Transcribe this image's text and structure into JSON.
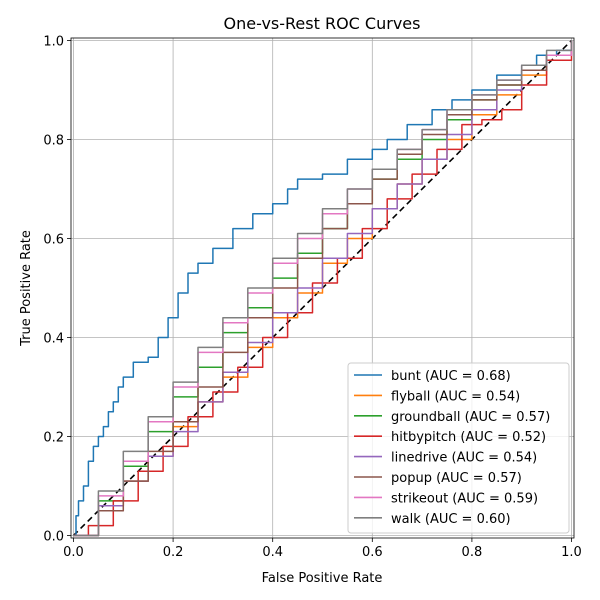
{
  "chart_data": {
    "type": "line",
    "title": "One-vs-Rest ROC Curves",
    "xlabel": "False Positive Rate",
    "ylabel": "True Positive Rate",
    "xlim": [
      -0.005,
      1.005
    ],
    "ylim": [
      -0.005,
      1.005
    ],
    "x_ticks": [
      "0.0",
      "0.2",
      "0.4",
      "0.6",
      "0.8",
      "1.0"
    ],
    "y_ticks": [
      "0.0",
      "0.2",
      "0.4",
      "0.6",
      "0.8",
      "1.0"
    ],
    "grid": true,
    "legend_position": "lower-right",
    "diagonal": {
      "style": "dashed",
      "color": "#000000",
      "points": [
        [
          0,
          0
        ],
        [
          1,
          1
        ]
      ]
    },
    "series": [
      {
        "label": "bunt (AUC = 0.68)",
        "color": "#1f77b4",
        "points": [
          [
            0,
            0
          ],
          [
            0.005,
            0.04
          ],
          [
            0.01,
            0.07
          ],
          [
            0.02,
            0.1
          ],
          [
            0.03,
            0.15
          ],
          [
            0.04,
            0.18
          ],
          [
            0.05,
            0.2
          ],
          [
            0.06,
            0.22
          ],
          [
            0.07,
            0.25
          ],
          [
            0.08,
            0.27
          ],
          [
            0.09,
            0.3
          ],
          [
            0.1,
            0.32
          ],
          [
            0.12,
            0.35
          ],
          [
            0.15,
            0.36
          ],
          [
            0.17,
            0.4
          ],
          [
            0.19,
            0.44
          ],
          [
            0.21,
            0.49
          ],
          [
            0.23,
            0.53
          ],
          [
            0.25,
            0.55
          ],
          [
            0.28,
            0.58
          ],
          [
            0.32,
            0.62
          ],
          [
            0.36,
            0.65
          ],
          [
            0.4,
            0.67
          ],
          [
            0.43,
            0.7
          ],
          [
            0.45,
            0.72
          ],
          [
            0.5,
            0.73
          ],
          [
            0.55,
            0.76
          ],
          [
            0.6,
            0.78
          ],
          [
            0.63,
            0.8
          ],
          [
            0.67,
            0.83
          ],
          [
            0.72,
            0.86
          ],
          [
            0.76,
            0.88
          ],
          [
            0.8,
            0.9
          ],
          [
            0.85,
            0.93
          ],
          [
            0.9,
            0.95
          ],
          [
            0.93,
            0.97
          ],
          [
            0.97,
            0.98
          ],
          [
            1,
            1
          ]
        ]
      },
      {
        "label": "flyball (AUC = 0.54)",
        "color": "#ff7f0e",
        "points": [
          [
            0,
            0
          ],
          [
            0.05,
            0.06
          ],
          [
            0.1,
            0.11
          ],
          [
            0.15,
            0.16
          ],
          [
            0.2,
            0.22
          ],
          [
            0.25,
            0.27
          ],
          [
            0.3,
            0.32
          ],
          [
            0.35,
            0.38
          ],
          [
            0.4,
            0.44
          ],
          [
            0.45,
            0.49
          ],
          [
            0.5,
            0.55
          ],
          [
            0.55,
            0.6
          ],
          [
            0.6,
            0.66
          ],
          [
            0.65,
            0.71
          ],
          [
            0.7,
            0.76
          ],
          [
            0.75,
            0.8
          ],
          [
            0.8,
            0.85
          ],
          [
            0.85,
            0.89
          ],
          [
            0.9,
            0.93
          ],
          [
            0.95,
            0.97
          ],
          [
            1,
            1
          ]
        ]
      },
      {
        "label": "groundball (AUC = 0.57)",
        "color": "#2ca02c",
        "points": [
          [
            0,
            0
          ],
          [
            0.05,
            0.07
          ],
          [
            0.1,
            0.14
          ],
          [
            0.15,
            0.21
          ],
          [
            0.2,
            0.28
          ],
          [
            0.25,
            0.34
          ],
          [
            0.3,
            0.41
          ],
          [
            0.35,
            0.46
          ],
          [
            0.4,
            0.52
          ],
          [
            0.45,
            0.57
          ],
          [
            0.5,
            0.62
          ],
          [
            0.55,
            0.67
          ],
          [
            0.6,
            0.72
          ],
          [
            0.65,
            0.76
          ],
          [
            0.7,
            0.8
          ],
          [
            0.75,
            0.84
          ],
          [
            0.8,
            0.88
          ],
          [
            0.85,
            0.91
          ],
          [
            0.9,
            0.94
          ],
          [
            0.95,
            0.97
          ],
          [
            1,
            1
          ]
        ]
      },
      {
        "label": "hitbypitch (AUC = 0.52)",
        "color": "#d62728",
        "points": [
          [
            0,
            0
          ],
          [
            0.03,
            0.02
          ],
          [
            0.08,
            0.07
          ],
          [
            0.13,
            0.13
          ],
          [
            0.18,
            0.18
          ],
          [
            0.23,
            0.24
          ],
          [
            0.28,
            0.29
          ],
          [
            0.33,
            0.34
          ],
          [
            0.38,
            0.4
          ],
          [
            0.43,
            0.45
          ],
          [
            0.48,
            0.51
          ],
          [
            0.53,
            0.56
          ],
          [
            0.58,
            0.62
          ],
          [
            0.63,
            0.68
          ],
          [
            0.68,
            0.73
          ],
          [
            0.73,
            0.78
          ],
          [
            0.78,
            0.83
          ],
          [
            0.82,
            0.84
          ],
          [
            0.86,
            0.86
          ],
          [
            0.9,
            0.91
          ],
          [
            0.95,
            0.96
          ],
          [
            1,
            1
          ]
        ]
      },
      {
        "label": "linedrive (AUC = 0.54)",
        "color": "#9467bd",
        "points": [
          [
            0,
            0
          ],
          [
            0.05,
            0.06
          ],
          [
            0.1,
            0.11
          ],
          [
            0.15,
            0.16
          ],
          [
            0.2,
            0.21
          ],
          [
            0.25,
            0.27
          ],
          [
            0.3,
            0.33
          ],
          [
            0.35,
            0.39
          ],
          [
            0.4,
            0.45
          ],
          [
            0.45,
            0.5
          ],
          [
            0.5,
            0.56
          ],
          [
            0.55,
            0.61
          ],
          [
            0.6,
            0.66
          ],
          [
            0.65,
            0.71
          ],
          [
            0.7,
            0.76
          ],
          [
            0.75,
            0.81
          ],
          [
            0.8,
            0.86
          ],
          [
            0.85,
            0.9
          ],
          [
            0.9,
            0.94
          ],
          [
            0.95,
            0.97
          ],
          [
            1,
            1
          ]
        ]
      },
      {
        "label": "popup (AUC = 0.57)",
        "color": "#8c564b",
        "points": [
          [
            0,
            0
          ],
          [
            0.05,
            0.05
          ],
          [
            0.1,
            0.11
          ],
          [
            0.15,
            0.17
          ],
          [
            0.2,
            0.23
          ],
          [
            0.25,
            0.3
          ],
          [
            0.3,
            0.37
          ],
          [
            0.35,
            0.44
          ],
          [
            0.4,
            0.5
          ],
          [
            0.45,
            0.56
          ],
          [
            0.5,
            0.62
          ],
          [
            0.55,
            0.67
          ],
          [
            0.6,
            0.72
          ],
          [
            0.65,
            0.77
          ],
          [
            0.7,
            0.81
          ],
          [
            0.75,
            0.85
          ],
          [
            0.8,
            0.88
          ],
          [
            0.85,
            0.91
          ],
          [
            0.9,
            0.94
          ],
          [
            0.95,
            0.97
          ],
          [
            1,
            1
          ]
        ]
      },
      {
        "label": "strikeout (AUC = 0.59)",
        "color": "#e377c2",
        "points": [
          [
            0,
            0
          ],
          [
            0.05,
            0.08
          ],
          [
            0.1,
            0.15
          ],
          [
            0.15,
            0.23
          ],
          [
            0.2,
            0.3
          ],
          [
            0.25,
            0.37
          ],
          [
            0.3,
            0.43
          ],
          [
            0.35,
            0.49
          ],
          [
            0.4,
            0.55
          ],
          [
            0.45,
            0.6
          ],
          [
            0.5,
            0.65
          ],
          [
            0.55,
            0.7
          ],
          [
            0.6,
            0.74
          ],
          [
            0.65,
            0.78
          ],
          [
            0.7,
            0.82
          ],
          [
            0.75,
            0.86
          ],
          [
            0.8,
            0.89
          ],
          [
            0.85,
            0.92
          ],
          [
            0.9,
            0.95
          ],
          [
            0.95,
            0.97
          ],
          [
            1,
            1
          ]
        ]
      },
      {
        "label": "walk (AUC = 0.60)",
        "color": "#7f7f7f",
        "points": [
          [
            0,
            0
          ],
          [
            0.05,
            0.09
          ],
          [
            0.1,
            0.17
          ],
          [
            0.15,
            0.24
          ],
          [
            0.2,
            0.31
          ],
          [
            0.25,
            0.38
          ],
          [
            0.3,
            0.44
          ],
          [
            0.35,
            0.5
          ],
          [
            0.4,
            0.56
          ],
          [
            0.45,
            0.61
          ],
          [
            0.5,
            0.66
          ],
          [
            0.55,
            0.7
          ],
          [
            0.6,
            0.74
          ],
          [
            0.65,
            0.78
          ],
          [
            0.7,
            0.82
          ],
          [
            0.75,
            0.86
          ],
          [
            0.8,
            0.89
          ],
          [
            0.85,
            0.92
          ],
          [
            0.9,
            0.95
          ],
          [
            0.95,
            0.98
          ],
          [
            1,
            1
          ]
        ]
      }
    ]
  }
}
